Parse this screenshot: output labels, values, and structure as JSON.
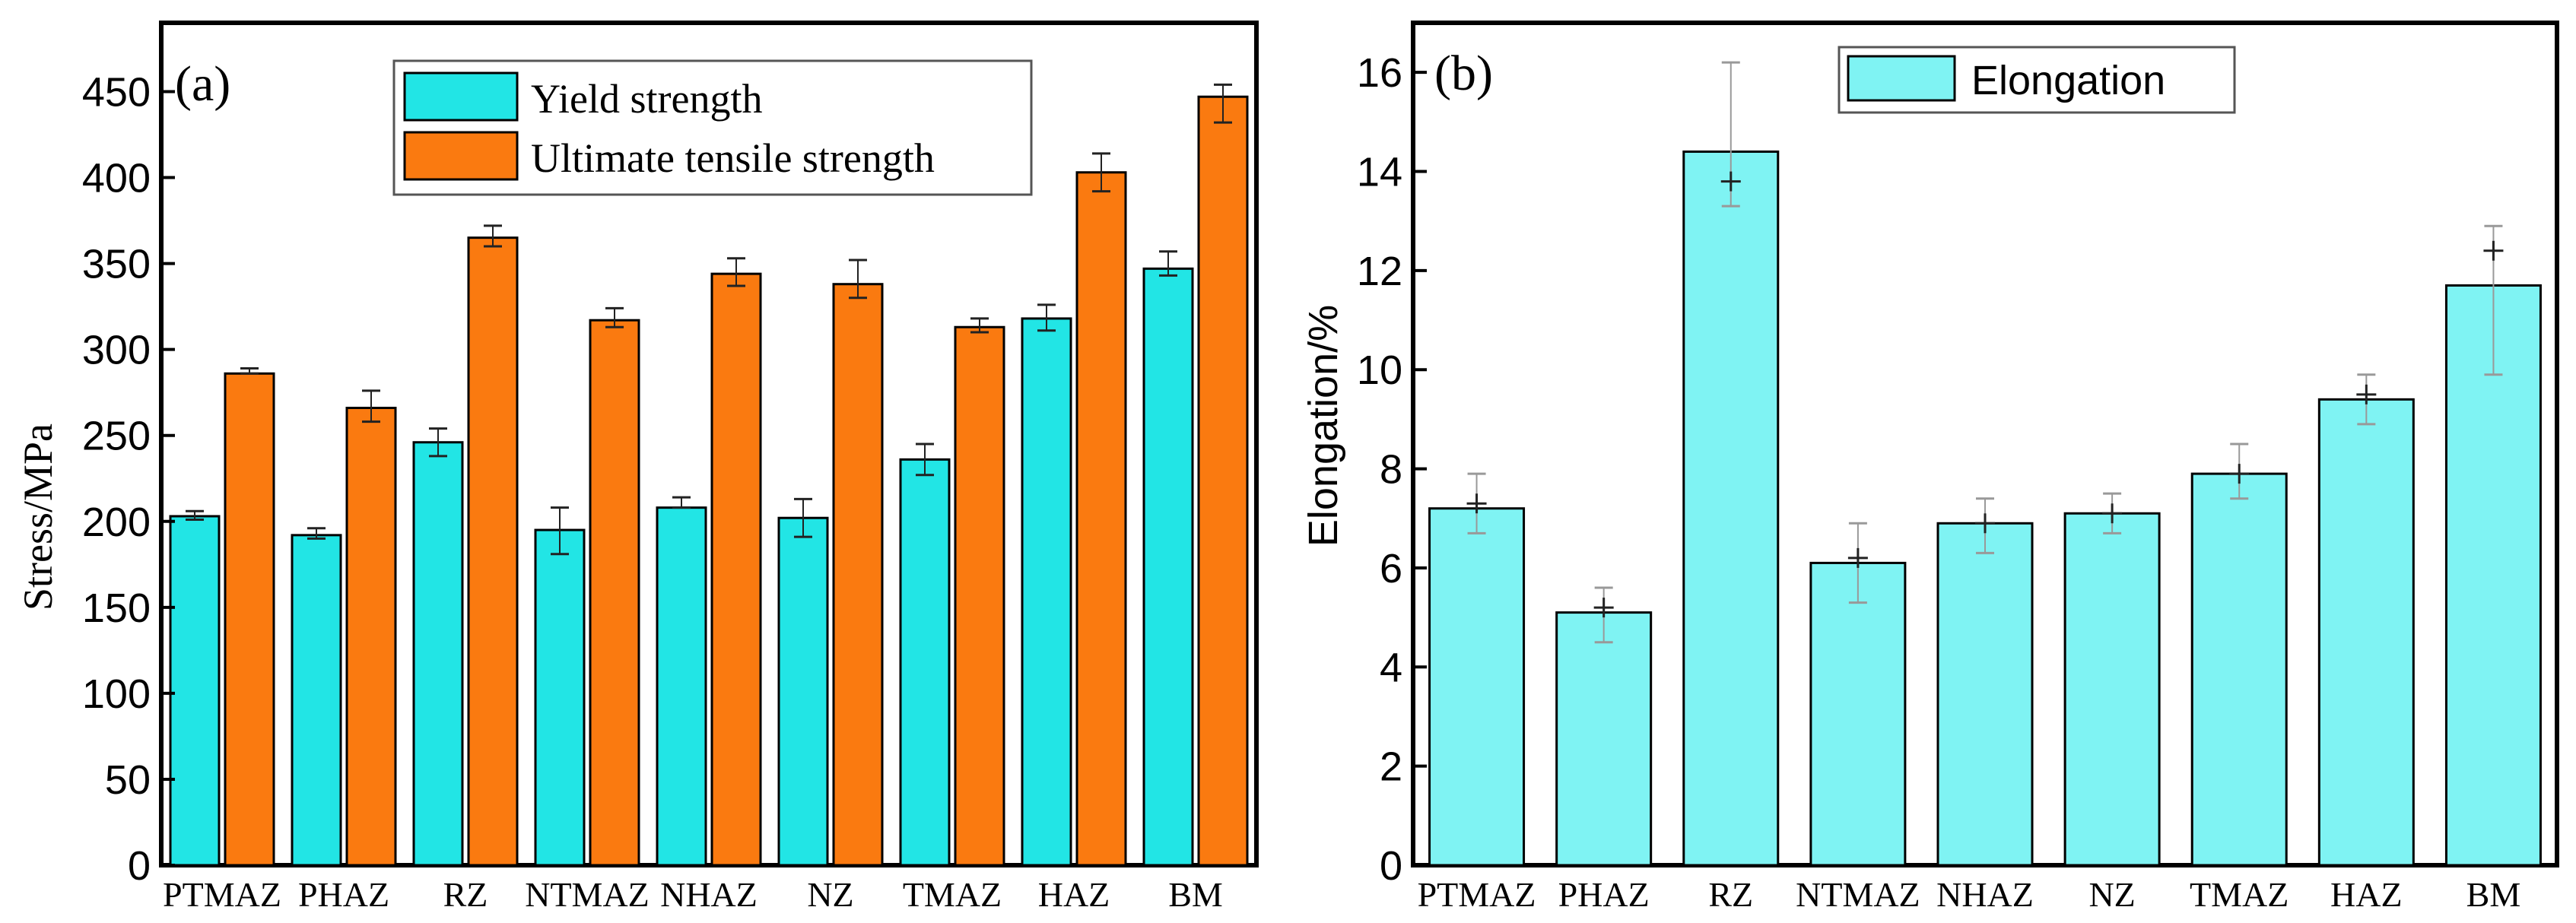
{
  "colors": {
    "yield": "#22e5e5",
    "uts": "#fa7a10",
    "elongation": "#7ff3f3",
    "axis": "#000000",
    "errorbar": "#222222",
    "errorbar_light": "#999999"
  },
  "chart_data": [
    {
      "type": "bar",
      "panel_label": "(a)",
      "categories": [
        "PTMAZ",
        "PHAZ",
        "RZ",
        "NTMAZ",
        "NHAZ",
        "NZ",
        "TMAZ",
        "HAZ",
        "BM"
      ],
      "ylabel": "Stress/MPa",
      "xlabel": "",
      "ylim": [
        0,
        490
      ],
      "yticks": [
        0,
        50,
        100,
        150,
        200,
        250,
        300,
        350,
        400,
        450
      ],
      "ytick_labels": [
        "0",
        "50",
        "100",
        "150",
        "200",
        "250",
        "300",
        "350",
        "400",
        "450"
      ],
      "legend_position": "top-center",
      "series": [
        {
          "name": "Yield strength",
          "values": [
            203,
            192,
            246,
            195,
            208,
            202,
            236,
            318,
            347
          ],
          "error_upper": [
            206,
            196,
            254,
            208,
            214,
            213,
            245,
            326,
            357
          ],
          "error_lower": [
            201,
            190,
            238,
            181,
            208,
            191,
            227,
            311,
            343
          ]
        },
        {
          "name": "Ultimate tensile strength",
          "values": [
            286,
            266,
            365,
            317,
            344,
            338,
            313,
            403,
            447
          ],
          "error_upper": [
            289,
            276,
            372,
            324,
            353,
            352,
            318,
            414,
            454
          ],
          "error_lower": [
            286,
            258,
            360,
            313,
            337,
            330,
            310,
            392,
            432
          ]
        }
      ]
    },
    {
      "type": "bar",
      "panel_label": "(b)",
      "categories": [
        "PTMAZ",
        "PHAZ",
        "RZ",
        "NTMAZ",
        "NHAZ",
        "NZ",
        "TMAZ",
        "HAZ",
        "BM"
      ],
      "ylabel": "Elongation/%",
      "xlabel": "",
      "ylim": [
        0,
        17
      ],
      "yticks": [
        0,
        2,
        4,
        6,
        8,
        10,
        12,
        14,
        16
      ],
      "ytick_labels": [
        "0",
        "2",
        "4",
        "6",
        "8",
        "10",
        "12",
        "14",
        "16"
      ],
      "legend_position": "top-center",
      "series": [
        {
          "name": "Elongation",
          "values": [
            7.2,
            5.1,
            14.4,
            6.1,
            6.9,
            7.1,
            7.9,
            9.4,
            11.7
          ],
          "error_upper": [
            7.9,
            5.6,
            16.2,
            6.9,
            7.4,
            7.5,
            8.5,
            9.9,
            12.9
          ],
          "error_lower": [
            6.7,
            4.5,
            13.3,
            5.3,
            6.3,
            6.7,
            7.4,
            8.9,
            9.9
          ],
          "mean_marker": [
            7.3,
            5.2,
            13.8,
            6.2,
            6.9,
            7.1,
            7.9,
            9.5,
            12.4
          ]
        }
      ]
    }
  ]
}
